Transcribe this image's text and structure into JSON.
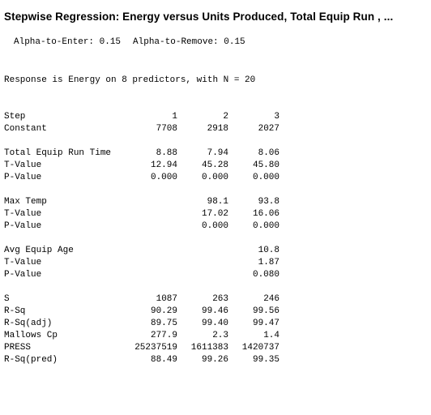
{
  "title": "Stepwise Regression: Energy versus Units Produced, Total Equip Run , ...",
  "alpha_to_enter": "Alpha-to-Enter: 0.15",
  "alpha_to_remove": "Alpha-to-Remove: 0.15",
  "response": "Response is Energy on 8 predictors, with N = 20",
  "table": {
    "step": {
      "label": "Step",
      "values": [
        "1",
        "2",
        "3"
      ]
    },
    "constant": {
      "label": "Constant",
      "values": [
        "7708",
        "2918",
        "2027"
      ]
    },
    "total_equip_run_time": {
      "label": "Total Equip Run Time",
      "values": [
        "8.88",
        "7.94",
        "8.06"
      ]
    },
    "t_value_1": {
      "label": "T-Value",
      "values": [
        "12.94",
        "45.28",
        "45.80"
      ]
    },
    "p_value_1": {
      "label": "P-Value",
      "values": [
        "0.000",
        "0.000",
        "0.000"
      ]
    },
    "max_temp": {
      "label": "Max Temp",
      "values": [
        "",
        "98.1",
        "93.8"
      ]
    },
    "t_value_2": {
      "label": "T-Value",
      "values": [
        "",
        "17.02",
        "16.06"
      ]
    },
    "p_value_2": {
      "label": "P-Value",
      "values": [
        "",
        "0.000",
        "0.000"
      ]
    },
    "avg_equip_age": {
      "label": "Avg Equip Age",
      "values": [
        "",
        "",
        "10.8"
      ]
    },
    "t_value_3": {
      "label": "T-Value",
      "values": [
        "",
        "",
        "1.87"
      ]
    },
    "p_value_3": {
      "label": "P-Value",
      "values": [
        "",
        "",
        "0.080"
      ]
    },
    "s": {
      "label": "S",
      "values": [
        "1087",
        "263",
        "246"
      ]
    },
    "r_sq": {
      "label": "R-Sq",
      "values": [
        "90.29",
        "99.46",
        "99.56"
      ]
    },
    "r_sq_adj": {
      "label": "R-Sq(adj)",
      "values": [
        "89.75",
        "99.40",
        "99.47"
      ]
    },
    "mallows_cp": {
      "label": "Mallows Cp",
      "values": [
        "277.9",
        "2.3",
        "1.4"
      ]
    },
    "press": {
      "label": "PRESS",
      "values": [
        "25237519",
        "1611383",
        "1420737"
      ]
    },
    "r_sq_pred": {
      "label": "R-Sq(pred)",
      "values": [
        "88.49",
        "99.26",
        "99.35"
      ]
    }
  }
}
